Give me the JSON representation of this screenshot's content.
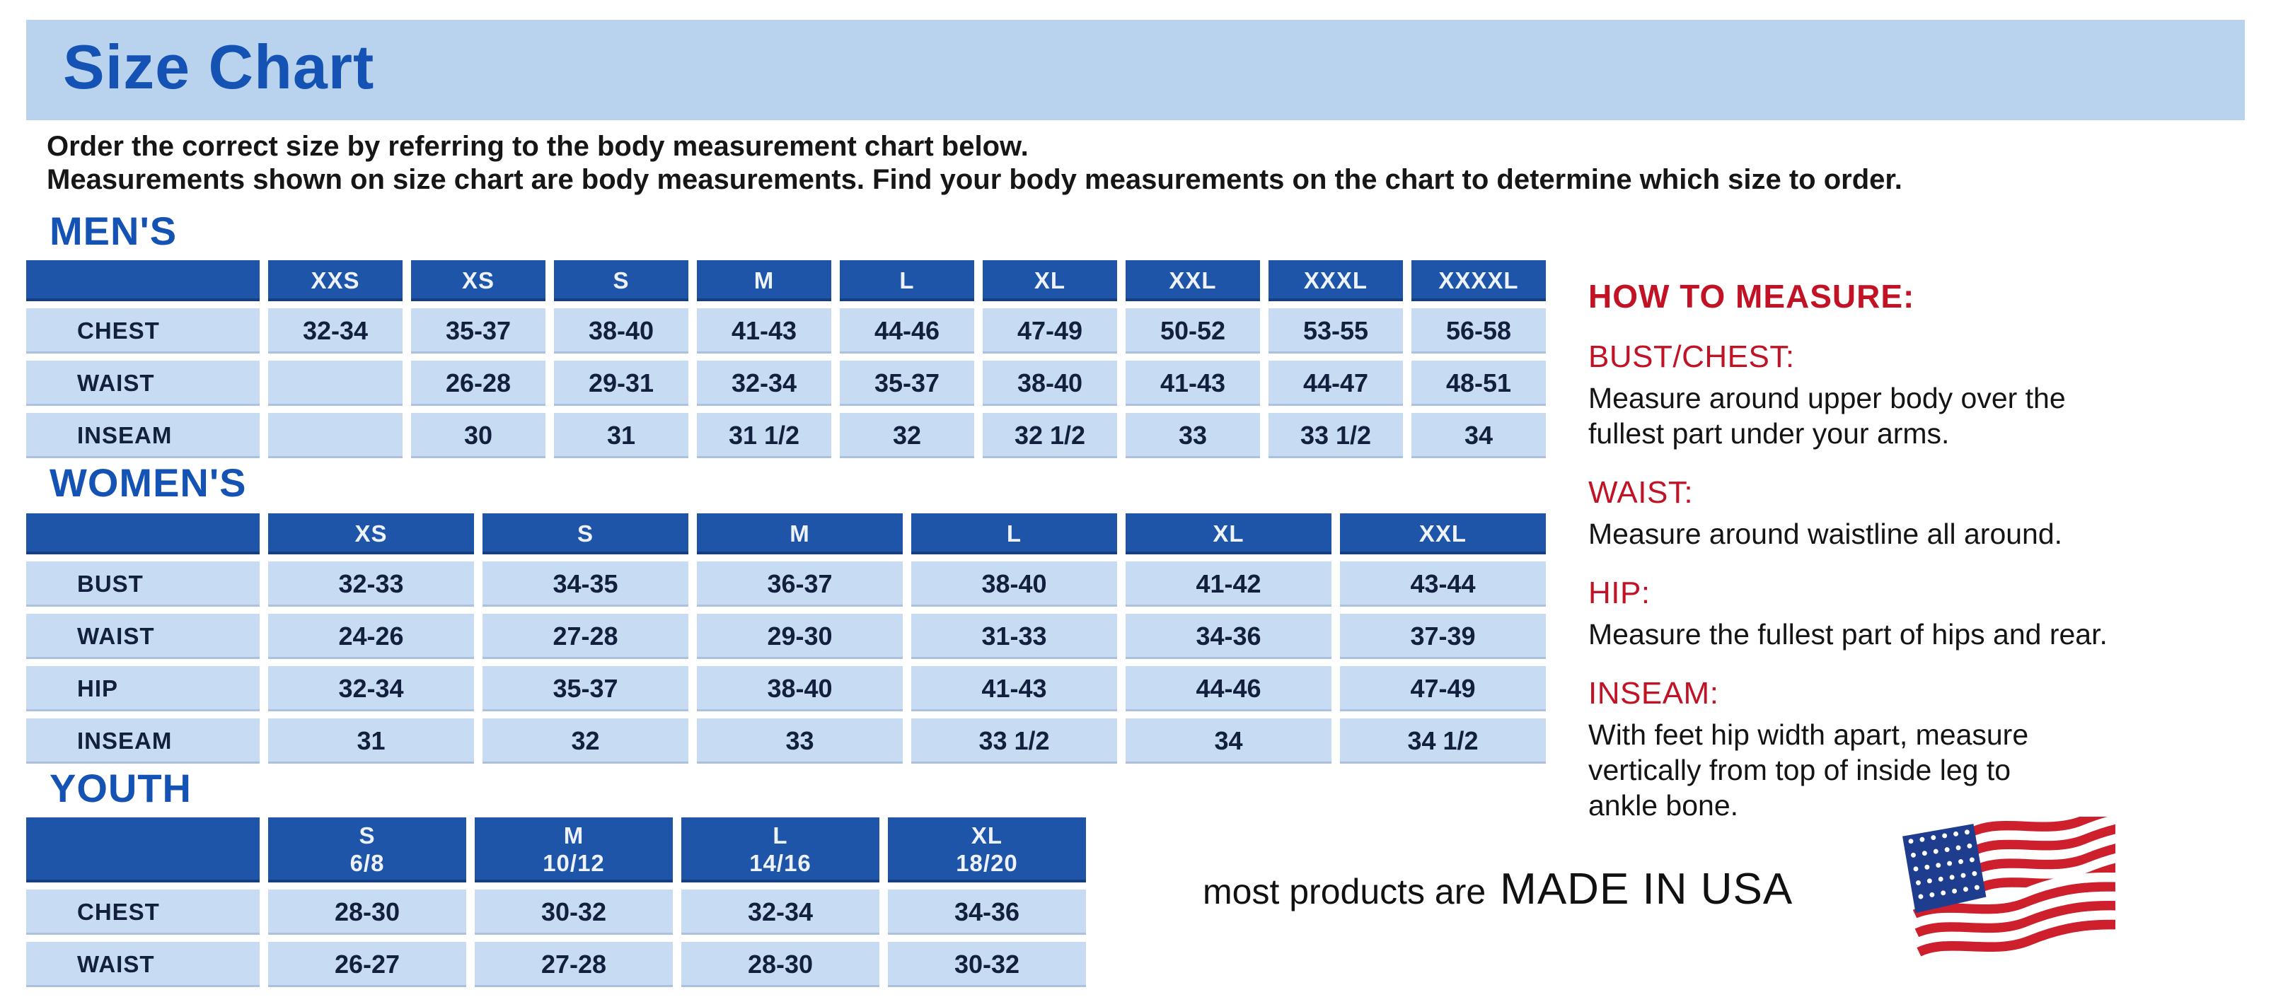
{
  "title": "Size Chart",
  "intro": {
    "line1": "Order the correct size by referring to the body measurement chart below.",
    "line2": "Measurements shown on size chart are body measurements.  Find your body measurements on the chart to determine which size to order."
  },
  "tables": [
    {
      "heading": "MEN'S",
      "columns": [
        {
          "label": "XXS",
          "sub": ""
        },
        {
          "label": "XS",
          "sub": ""
        },
        {
          "label": "S",
          "sub": ""
        },
        {
          "label": "M",
          "sub": ""
        },
        {
          "label": "L",
          "sub": ""
        },
        {
          "label": "XL",
          "sub": ""
        },
        {
          "label": "XXL",
          "sub": ""
        },
        {
          "label": "XXXL",
          "sub": ""
        },
        {
          "label": "XXXXL",
          "sub": ""
        }
      ],
      "rows": [
        {
          "label": "CHEST",
          "values": [
            "32-34",
            "35-37",
            "38-40",
            "41-43",
            "44-46",
            "47-49",
            "50-52",
            "53-55",
            "56-58"
          ]
        },
        {
          "label": "WAIST",
          "values": [
            "",
            "26-28",
            "29-31",
            "32-34",
            "35-37",
            "38-40",
            "41-43",
            "44-47",
            "48-51"
          ]
        },
        {
          "label": "INSEAM",
          "values": [
            "",
            "30",
            "31",
            "31 1/2",
            "32",
            "32 1/2",
            "33",
            "33 1/2",
            "34"
          ]
        }
      ]
    },
    {
      "heading": "WOMEN'S",
      "columns": [
        {
          "label": "XS",
          "sub": ""
        },
        {
          "label": "S",
          "sub": ""
        },
        {
          "label": "M",
          "sub": ""
        },
        {
          "label": "L",
          "sub": ""
        },
        {
          "label": "XL",
          "sub": ""
        },
        {
          "label": "XXL",
          "sub": ""
        }
      ],
      "rows": [
        {
          "label": "BUST",
          "values": [
            "32-33",
            "34-35",
            "36-37",
            "38-40",
            "41-42",
            "43-44"
          ]
        },
        {
          "label": "WAIST",
          "values": [
            "24-26",
            "27-28",
            "29-30",
            "31-33",
            "34-36",
            "37-39"
          ]
        },
        {
          "label": "HIP",
          "values": [
            "32-34",
            "35-37",
            "38-40",
            "41-43",
            "44-46",
            "47-49"
          ]
        },
        {
          "label": "INSEAM",
          "values": [
            "31",
            "32",
            "33",
            "33 1/2",
            "34",
            "34 1/2"
          ]
        }
      ]
    },
    {
      "heading": "YOUTH",
      "columns": [
        {
          "label": "S",
          "sub": "6/8"
        },
        {
          "label": "M",
          "sub": "10/12"
        },
        {
          "label": "L",
          "sub": "14/16"
        },
        {
          "label": "XL",
          "sub": "18/20"
        }
      ],
      "rows": [
        {
          "label": "CHEST",
          "values": [
            "28-30",
            "30-32",
            "32-34",
            "34-36"
          ]
        },
        {
          "label": "WAIST",
          "values": [
            "26-27",
            "27-28",
            "28-30",
            "30-32"
          ]
        }
      ]
    }
  ],
  "how_to_measure": {
    "heading": "HOW TO MEASURE:",
    "items": [
      {
        "label": "BUST/CHEST:",
        "text": "Measure around upper body over the\nfullest part under your arms."
      },
      {
        "label": "WAIST:",
        "text": "Measure around waistline all around."
      },
      {
        "label": "HIP:",
        "text": "Measure the fullest part of hips and rear."
      },
      {
        "label": "INSEAM:",
        "text": "With feet hip width apart, measure\nvertically from top of inside leg to\nankle bone."
      }
    ]
  },
  "footer": {
    "prefix": "most products are",
    "made_in": "MADE IN USA",
    "flag_icon": "usa-flag-icon"
  },
  "colors": {
    "banner_bg": "#b9d3ee",
    "title_blue": "#1452b4",
    "header_cell_blue": "#1e55a8",
    "cell_blue": "#c7dbf2",
    "cell_text": "#121f3d",
    "heading_red": "#c11325",
    "body_text": "#141414",
    "flag_red": "#ce1f2d",
    "flag_blue": "#1e3d8f"
  }
}
